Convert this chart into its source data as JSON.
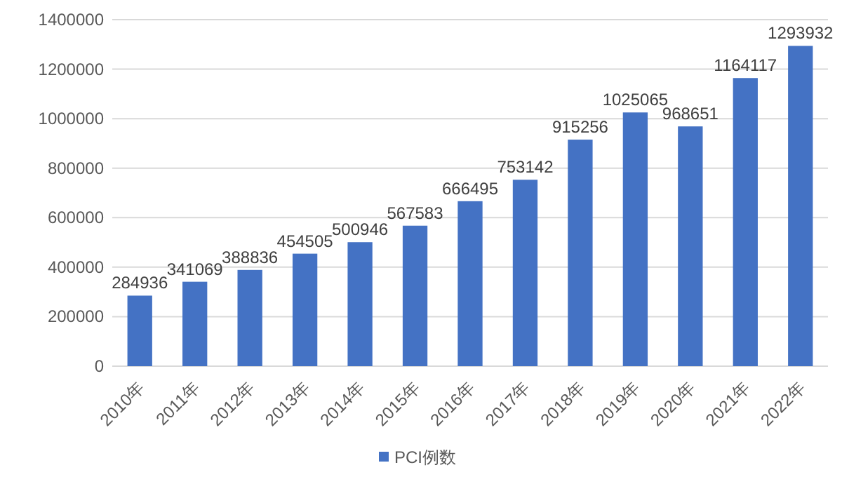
{
  "chart_data": {
    "type": "bar",
    "categories": [
      "2010年",
      "2011年",
      "2012年",
      "2013年",
      "2014年",
      "2015年",
      "2016年",
      "2017年",
      "2018年",
      "2019年",
      "2020年",
      "2021年",
      "2022年"
    ],
    "series": [
      {
        "name": "PCI例数",
        "color": "#4472c4",
        "values": [
          284936,
          341069,
          388836,
          454505,
          500946,
          567583,
          666495,
          753142,
          915256,
          1025065,
          968651,
          1164117,
          1293932
        ]
      }
    ],
    "ylim": [
      0,
      1400000
    ],
    "yticks": [
      0,
      200000,
      400000,
      600000,
      800000,
      1000000,
      1200000,
      1400000
    ],
    "grid": "y",
    "legend": "bottom",
    "data_labels": true
  }
}
